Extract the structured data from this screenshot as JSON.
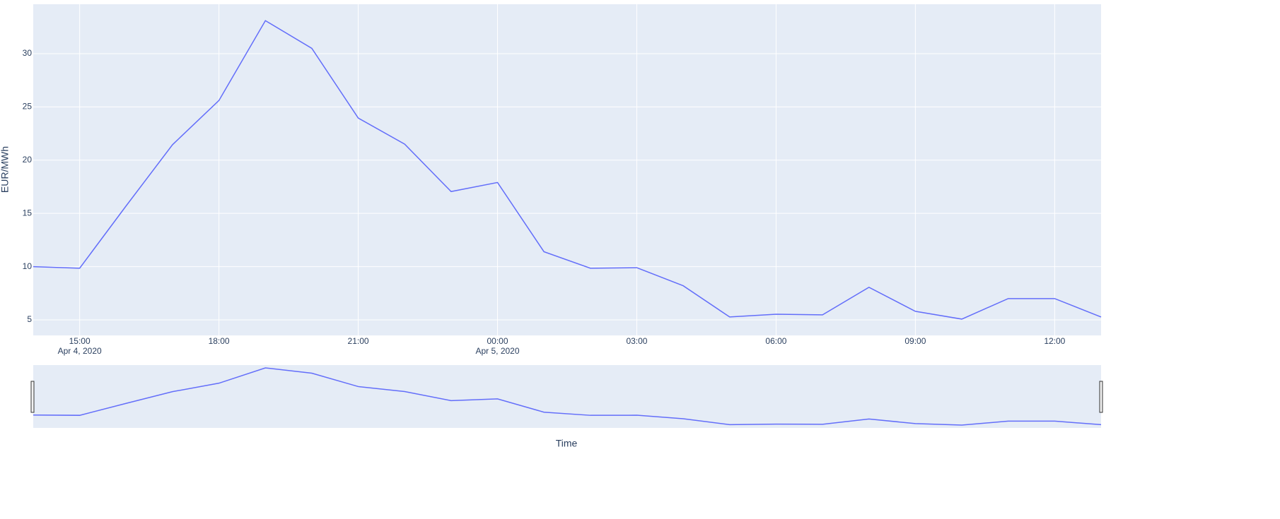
{
  "chart_data": {
    "type": "line",
    "y_axis_label": "EUR/MWh",
    "x_axis_label": "Time",
    "x": [
      "2020-04-04 14:00",
      "2020-04-04 15:00",
      "2020-04-04 16:00",
      "2020-04-04 17:00",
      "2020-04-04 18:00",
      "2020-04-04 19:00",
      "2020-04-04 20:00",
      "2020-04-04 21:00",
      "2020-04-04 22:00",
      "2020-04-04 23:00",
      "2020-04-05 00:00",
      "2020-04-05 01:00",
      "2020-04-05 02:00",
      "2020-04-05 03:00",
      "2020-04-05 04:00",
      "2020-04-05 05:00",
      "2020-04-05 06:00",
      "2020-04-05 07:00",
      "2020-04-05 08:00",
      "2020-04-05 09:00",
      "2020-04-05 10:00",
      "2020-04-05 11:00",
      "2020-04-05 12:00",
      "2020-04-05 13:00"
    ],
    "series": [
      {
        "name": "EUR/MWh",
        "color": "#636efa",
        "values": [
          10.0,
          9.85,
          15.7,
          21.45,
          25.6,
          33.1,
          30.5,
          23.95,
          21.5,
          17.05,
          17.9,
          11.4,
          9.85,
          9.9,
          8.2,
          5.27,
          5.53,
          5.47,
          8.06,
          5.8,
          5.07,
          7.0,
          7.0,
          5.27
        ]
      }
    ],
    "xlim": [
      "2020-04-04 14:00",
      "2020-04-05 13:00"
    ],
    "xticks": [
      {
        "value": "2020-04-04 15:00",
        "label": "15:00",
        "sublabel": "Apr 4, 2020"
      },
      {
        "value": "2020-04-04 18:00",
        "label": "18:00"
      },
      {
        "value": "2020-04-04 21:00",
        "label": "21:00"
      },
      {
        "value": "2020-04-05 00:00",
        "label": "00:00",
        "sublabel": "Apr 5, 2020"
      },
      {
        "value": "2020-04-05 03:00",
        "label": "03:00"
      },
      {
        "value": "2020-04-05 06:00",
        "label": "06:00"
      },
      {
        "value": "2020-04-05 09:00",
        "label": "09:00"
      },
      {
        "value": "2020-04-05 12:00",
        "label": "12:00"
      }
    ],
    "ylim": [
      3.54,
      34.64
    ],
    "yticks": [
      5,
      10,
      15,
      20,
      25,
      30
    ],
    "grid": true,
    "plot_background": "#e5ecf6",
    "range_slider": true
  }
}
